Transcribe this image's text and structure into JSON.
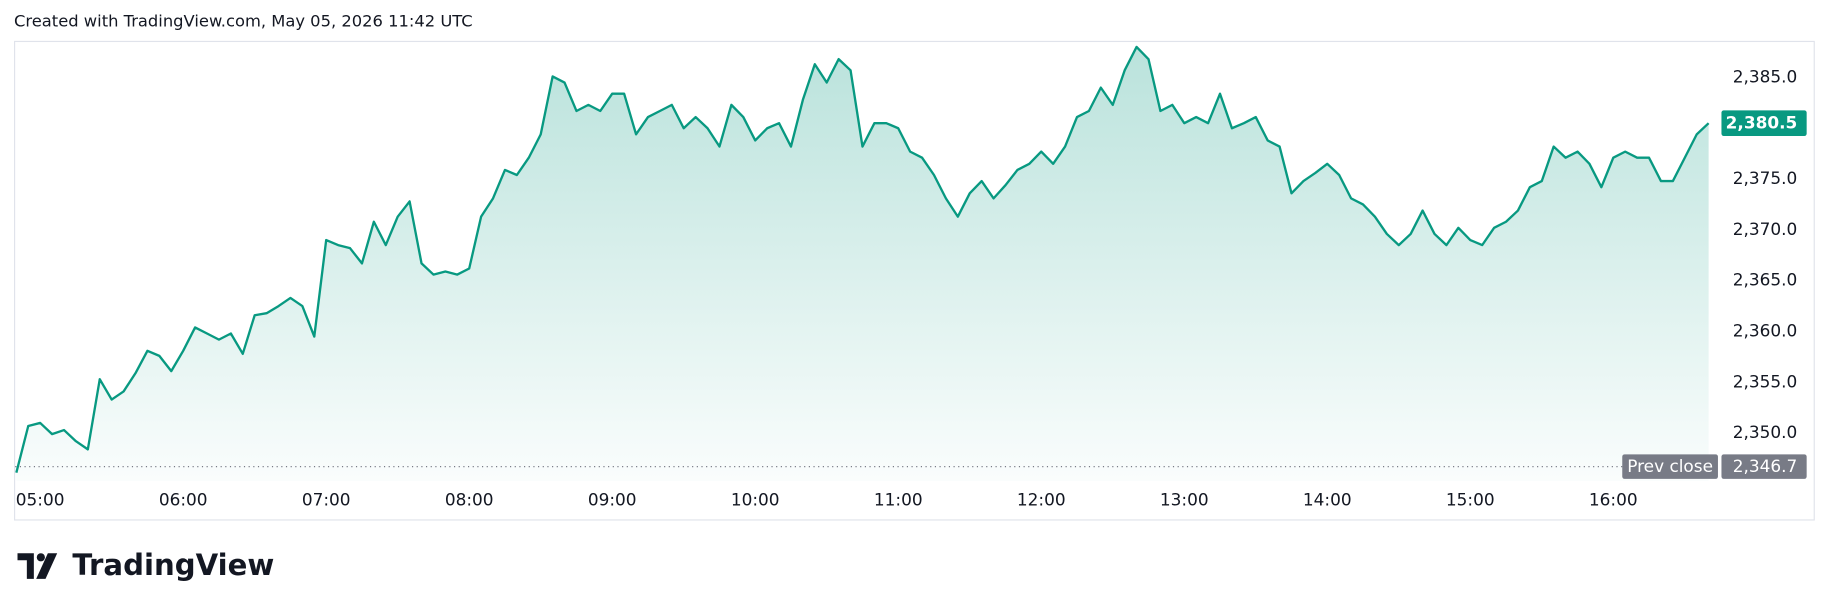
{
  "chart_data": {
    "type": "area",
    "caption": "Created with TradingView.com, May 05, 2026 11:42 UTC",
    "brand": "TradingView",
    "color": "#089981",
    "grid": false,
    "x": [
      "04:50",
      "04:55",
      "05:00",
      "05:05",
      "05:10",
      "05:15",
      "05:20",
      "05:25",
      "05:30",
      "05:35",
      "05:40",
      "05:45",
      "05:50",
      "05:55",
      "06:00",
      "06:05",
      "06:10",
      "06:15",
      "06:20",
      "06:25",
      "06:30",
      "06:35",
      "06:40",
      "06:45",
      "06:50",
      "06:55",
      "07:00",
      "07:05",
      "07:10",
      "07:15",
      "07:20",
      "07:25",
      "07:30",
      "07:35",
      "07:40",
      "07:45",
      "07:50",
      "07:55",
      "08:00",
      "08:05",
      "08:10",
      "08:15",
      "08:20",
      "08:25",
      "08:30",
      "08:35",
      "08:40",
      "08:45",
      "08:50",
      "08:55",
      "09:00",
      "09:05",
      "09:10",
      "09:15",
      "09:20",
      "09:25",
      "09:30",
      "09:35",
      "09:40",
      "09:45",
      "09:50",
      "09:55",
      "10:00",
      "10:05",
      "10:10",
      "10:15",
      "10:20",
      "10:25",
      "10:30",
      "10:35",
      "10:40",
      "10:45",
      "10:50",
      "10:55",
      "11:00",
      "11:05",
      "11:10",
      "11:15",
      "11:20",
      "11:25",
      "11:30",
      "11:35",
      "11:40",
      "11:45",
      "11:50",
      "11:55",
      "12:00",
      "12:05",
      "12:10",
      "12:15",
      "12:20",
      "12:25",
      "12:30",
      "12:35",
      "12:40",
      "12:45",
      "12:50",
      "12:55",
      "13:00",
      "13:05",
      "13:10",
      "13:15",
      "13:20",
      "13:25",
      "13:30",
      "13:35",
      "13:40",
      "13:45",
      "13:50",
      "13:55",
      "14:00",
      "14:05",
      "14:10",
      "14:15",
      "14:20",
      "14:25",
      "14:30",
      "14:35",
      "14:40",
      "14:45",
      "14:50",
      "14:55",
      "15:00",
      "15:05",
      "15:10",
      "15:15",
      "15:20",
      "15:25",
      "15:30",
      "15:35",
      "15:40",
      "15:45",
      "15:50",
      "15:55",
      "16:00",
      "16:05",
      "16:10",
      "16:15",
      "16:20",
      "16:25",
      "16:30",
      "16:35",
      "16:40"
    ],
    "values": [
      2346.1,
      2350.7,
      2351.0,
      2349.9,
      2350.3,
      2349.2,
      2348.4,
      2355.3,
      2353.3,
      2354.1,
      2355.9,
      2358.1,
      2357.6,
      2356.1,
      2358.1,
      2360.4,
      2359.8,
      2359.2,
      2359.8,
      2357.8,
      2361.6,
      2361.8,
      2362.5,
      2363.3,
      2362.5,
      2359.5,
      2369.0,
      2368.5,
      2368.2,
      2366.7,
      2370.8,
      2368.5,
      2371.3,
      2372.8,
      2366.7,
      2365.6,
      2365.9,
      2365.6,
      2366.2,
      2371.3,
      2373.1,
      2375.9,
      2375.4,
      2377.1,
      2379.4,
      2385.1,
      2384.5,
      2381.7,
      2382.3,
      2381.7,
      2383.4,
      2383.4,
      2379.4,
      2381.1,
      2381.7,
      2382.3,
      2380.0,
      2381.1,
      2380.0,
      2378.2,
      2382.3,
      2381.1,
      2378.8,
      2380.0,
      2380.5,
      2378.2,
      2382.8,
      2386.3,
      2384.5,
      2386.8,
      2385.7,
      2378.2,
      2380.5,
      2380.5,
      2380.0,
      2377.7,
      2377.1,
      2375.4,
      2373.1,
      2371.3,
      2373.6,
      2374.8,
      2373.1,
      2374.4,
      2375.9,
      2376.5,
      2377.7,
      2376.5,
      2378.2,
      2381.1,
      2381.7,
      2384.0,
      2382.3,
      2385.7,
      2388.0,
      2386.8,
      2381.7,
      2382.3,
      2380.5,
      2381.1,
      2380.5,
      2383.4,
      2380.0,
      2380.5,
      2381.1,
      2378.8,
      2378.2,
      2373.6,
      2374.8,
      2375.6,
      2376.5,
      2375.4,
      2373.1,
      2372.5,
      2371.3,
      2369.6,
      2368.5,
      2369.6,
      2371.9,
      2369.6,
      2368.5,
      2370.2,
      2369.0,
      2368.5,
      2370.2,
      2370.8,
      2371.9,
      2374.2,
      2374.8,
      2378.2,
      2377.1,
      2377.7,
      2376.5,
      2374.2,
      2377.1,
      2377.7,
      2377.1,
      2377.1,
      2374.8,
      2374.8,
      2377.1,
      2379.4,
      2380.5
    ],
    "value_labels": [
      null,
      null,
      null,
      null,
      null,
      null,
      null,
      null,
      null,
      null,
      null,
      null,
      null,
      null,
      null,
      null,
      null,
      null,
      null,
      null,
      null,
      null,
      null,
      null,
      null,
      null,
      null,
      null,
      null,
      null,
      null,
      null,
      null,
      null,
      null,
      null,
      null,
      null,
      null,
      null,
      null,
      null,
      null,
      null,
      null,
      null,
      null,
      null,
      null,
      null,
      null,
      null,
      null,
      null,
      null,
      null,
      null,
      null,
      null,
      null,
      null,
      null,
      null,
      null,
      null,
      null,
      null,
      null,
      null,
      null,
      null,
      null,
      null,
      null,
      null,
      null,
      null,
      null,
      null,
      null,
      null,
      null,
      null,
      null,
      null,
      null,
      null,
      null,
      null,
      null,
      null,
      null,
      null,
      null,
      null,
      null,
      null,
      null,
      null,
      null,
      null,
      null,
      null,
      null,
      null,
      null,
      null,
      null,
      null,
      null,
      null,
      null,
      null,
      null,
      null,
      null,
      null,
      null,
      null,
      null,
      null,
      null,
      null,
      null,
      null,
      null,
      null,
      null,
      null,
      null,
      null,
      null,
      null,
      null,
      null,
      null,
      null,
      null,
      null,
      null,
      null,
      null,
      "2,380.5"
    ],
    "xlim": [
      "04:50",
      "16:40"
    ],
    "xticks": [
      "05:00",
      "06:00",
      "07:00",
      "08:00",
      "09:00",
      "10:00",
      "11:00",
      "12:00",
      "13:00",
      "14:00",
      "15:00",
      "16:00"
    ],
    "ylim": [
      2345.3,
      2388.6
    ],
    "yticks": [
      {
        "value": 2350,
        "label": "2,350.0"
      },
      {
        "value": 2355,
        "label": "2,355.0"
      },
      {
        "value": 2360,
        "label": "2,360.0"
      },
      {
        "value": 2365,
        "label": "2,365.0"
      },
      {
        "value": 2370,
        "label": "2,370.0"
      },
      {
        "value": 2375,
        "label": "2,375.0"
      },
      {
        "value": 2385,
        "label": "2,385.0"
      }
    ],
    "reference_lines": [
      {
        "name": "Prev close",
        "value": 2346.7,
        "label": "2,346.7",
        "color": "#787b86"
      }
    ]
  }
}
